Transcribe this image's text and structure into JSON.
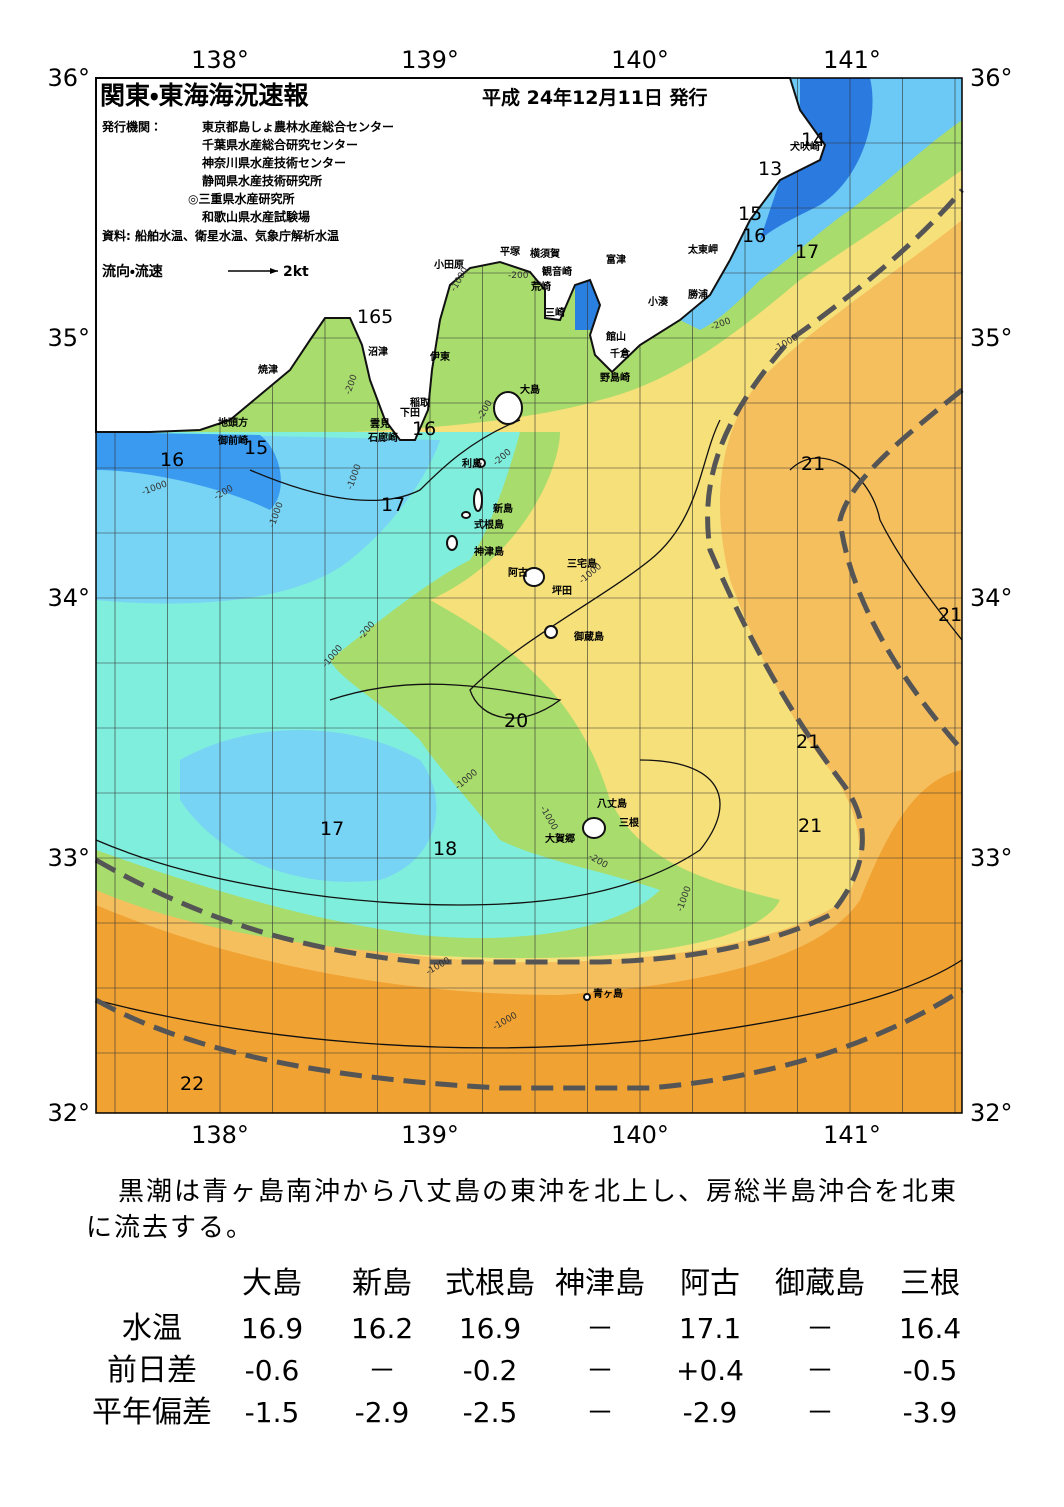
{
  "header": {
    "title": "関東・東海海況速報",
    "date": "平成 24年12月11日 発行",
    "issuer_label": "発行機関：",
    "issuers": [
      "東京都島しょ農林水産総合センター",
      "千葉県水産総合研究センター",
      "神奈川県水産技術センター",
      "静岡県水産技術研究所",
      "◎三重県水産研究所",
      "和歌山県水産試験場"
    ],
    "source": "資料: 船舶水温、衛星水温、気象庁解析水温",
    "legend_label": "流向・流速",
    "legend_scale": "2kt"
  },
  "map": {
    "lon_labels": [
      "138°",
      "139°",
      "140°",
      "141°"
    ],
    "lat_labels": [
      "36°",
      "35°",
      "34°",
      "33°",
      "32°"
    ],
    "places": [
      "犬吠崎",
      "太東岬",
      "富津",
      "勝浦",
      "小湊",
      "館山",
      "千倉",
      "野島崎",
      "平塚",
      "横須賀",
      "観音崎",
      "荒崎",
      "三崎",
      "小田原",
      "沼津",
      "伊東",
      "焼津",
      "稲取",
      "下田",
      "雲見",
      "石廊崎",
      "地頭方",
      "御前崎",
      "大島",
      "利島",
      "新島",
      "式根島",
      "神津島",
      "三宅島",
      "阿古",
      "坪田",
      "御蔵島",
      "八丈島",
      "三根",
      "大賀郷",
      "青ヶ島"
    ],
    "contour_labels": [
      "14",
      "13",
      "15",
      "16",
      "17",
      "165",
      "15",
      "16",
      "16",
      "17",
      "21",
      "21",
      "20",
      "21",
      "21",
      "17",
      "18",
      "22"
    ],
    "depth_labels": [
      "-200",
      "-1000",
      "-200",
      "-1000",
      "-200",
      "-1000",
      "-200",
      "-1000",
      "-1000",
      "-200",
      "-200",
      "-1000",
      "-200",
      "-1000",
      "-1000",
      "-1000",
      "-200",
      "-1000",
      "-1000",
      "-1000"
    ]
  },
  "comment": [
    "黒潮は青ヶ島南沖から八丈島の東沖を北上し、房総半島沖合を北東",
    "に流去する。"
  ],
  "table": {
    "columns": [
      "大島",
      "新島",
      "式根島",
      "神津島",
      "阿古",
      "御蔵島",
      "三根"
    ],
    "rows": [
      {
        "label": "水温",
        "values": [
          "16.9",
          "16.2",
          "16.9",
          "－",
          "17.1",
          "－",
          "16.4"
        ]
      },
      {
        "label": "前日差",
        "values": [
          "-0.6",
          "－",
          "-0.2",
          "－",
          "+0.4",
          "－",
          "-0.5"
        ]
      },
      {
        "label": "平年偏差",
        "values": [
          "-1.5",
          "-2.9",
          "-2.5",
          "－",
          "-2.9",
          "－",
          "-3.9"
        ]
      }
    ]
  }
}
